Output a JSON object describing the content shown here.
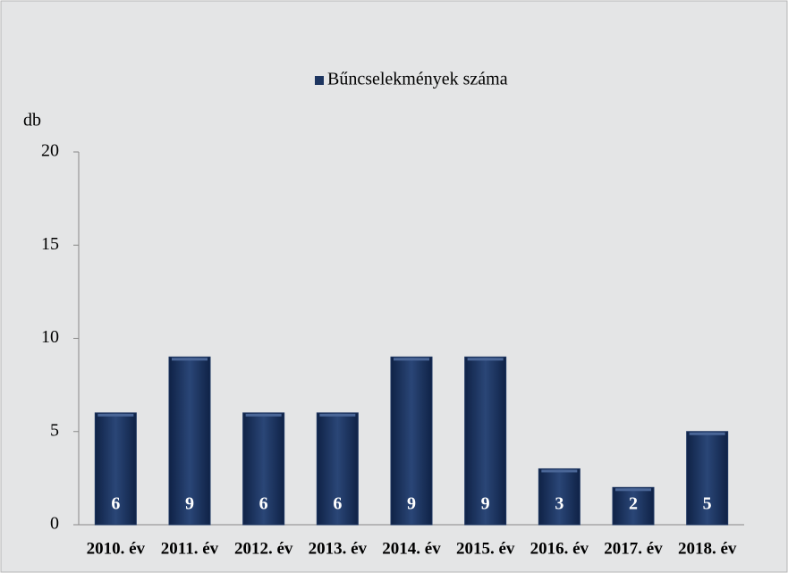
{
  "chart_data": {
    "type": "bar",
    "y_label": "db",
    "categories": [
      "2010. év",
      "2011. év",
      "2012. év",
      "2013. év",
      "2014. év",
      "2015. év",
      "2016. év",
      "2017. év",
      "2018. év"
    ],
    "series": [
      {
        "name": "Bűncselekmények száma",
        "color": "#1d3560",
        "values": [
          6,
          9,
          6,
          6,
          9,
          9,
          3,
          2,
          5
        ]
      }
    ],
    "ylim": [
      0,
      20
    ],
    "yticks": [
      0,
      5,
      10,
      15,
      20
    ],
    "legend": "top"
  }
}
